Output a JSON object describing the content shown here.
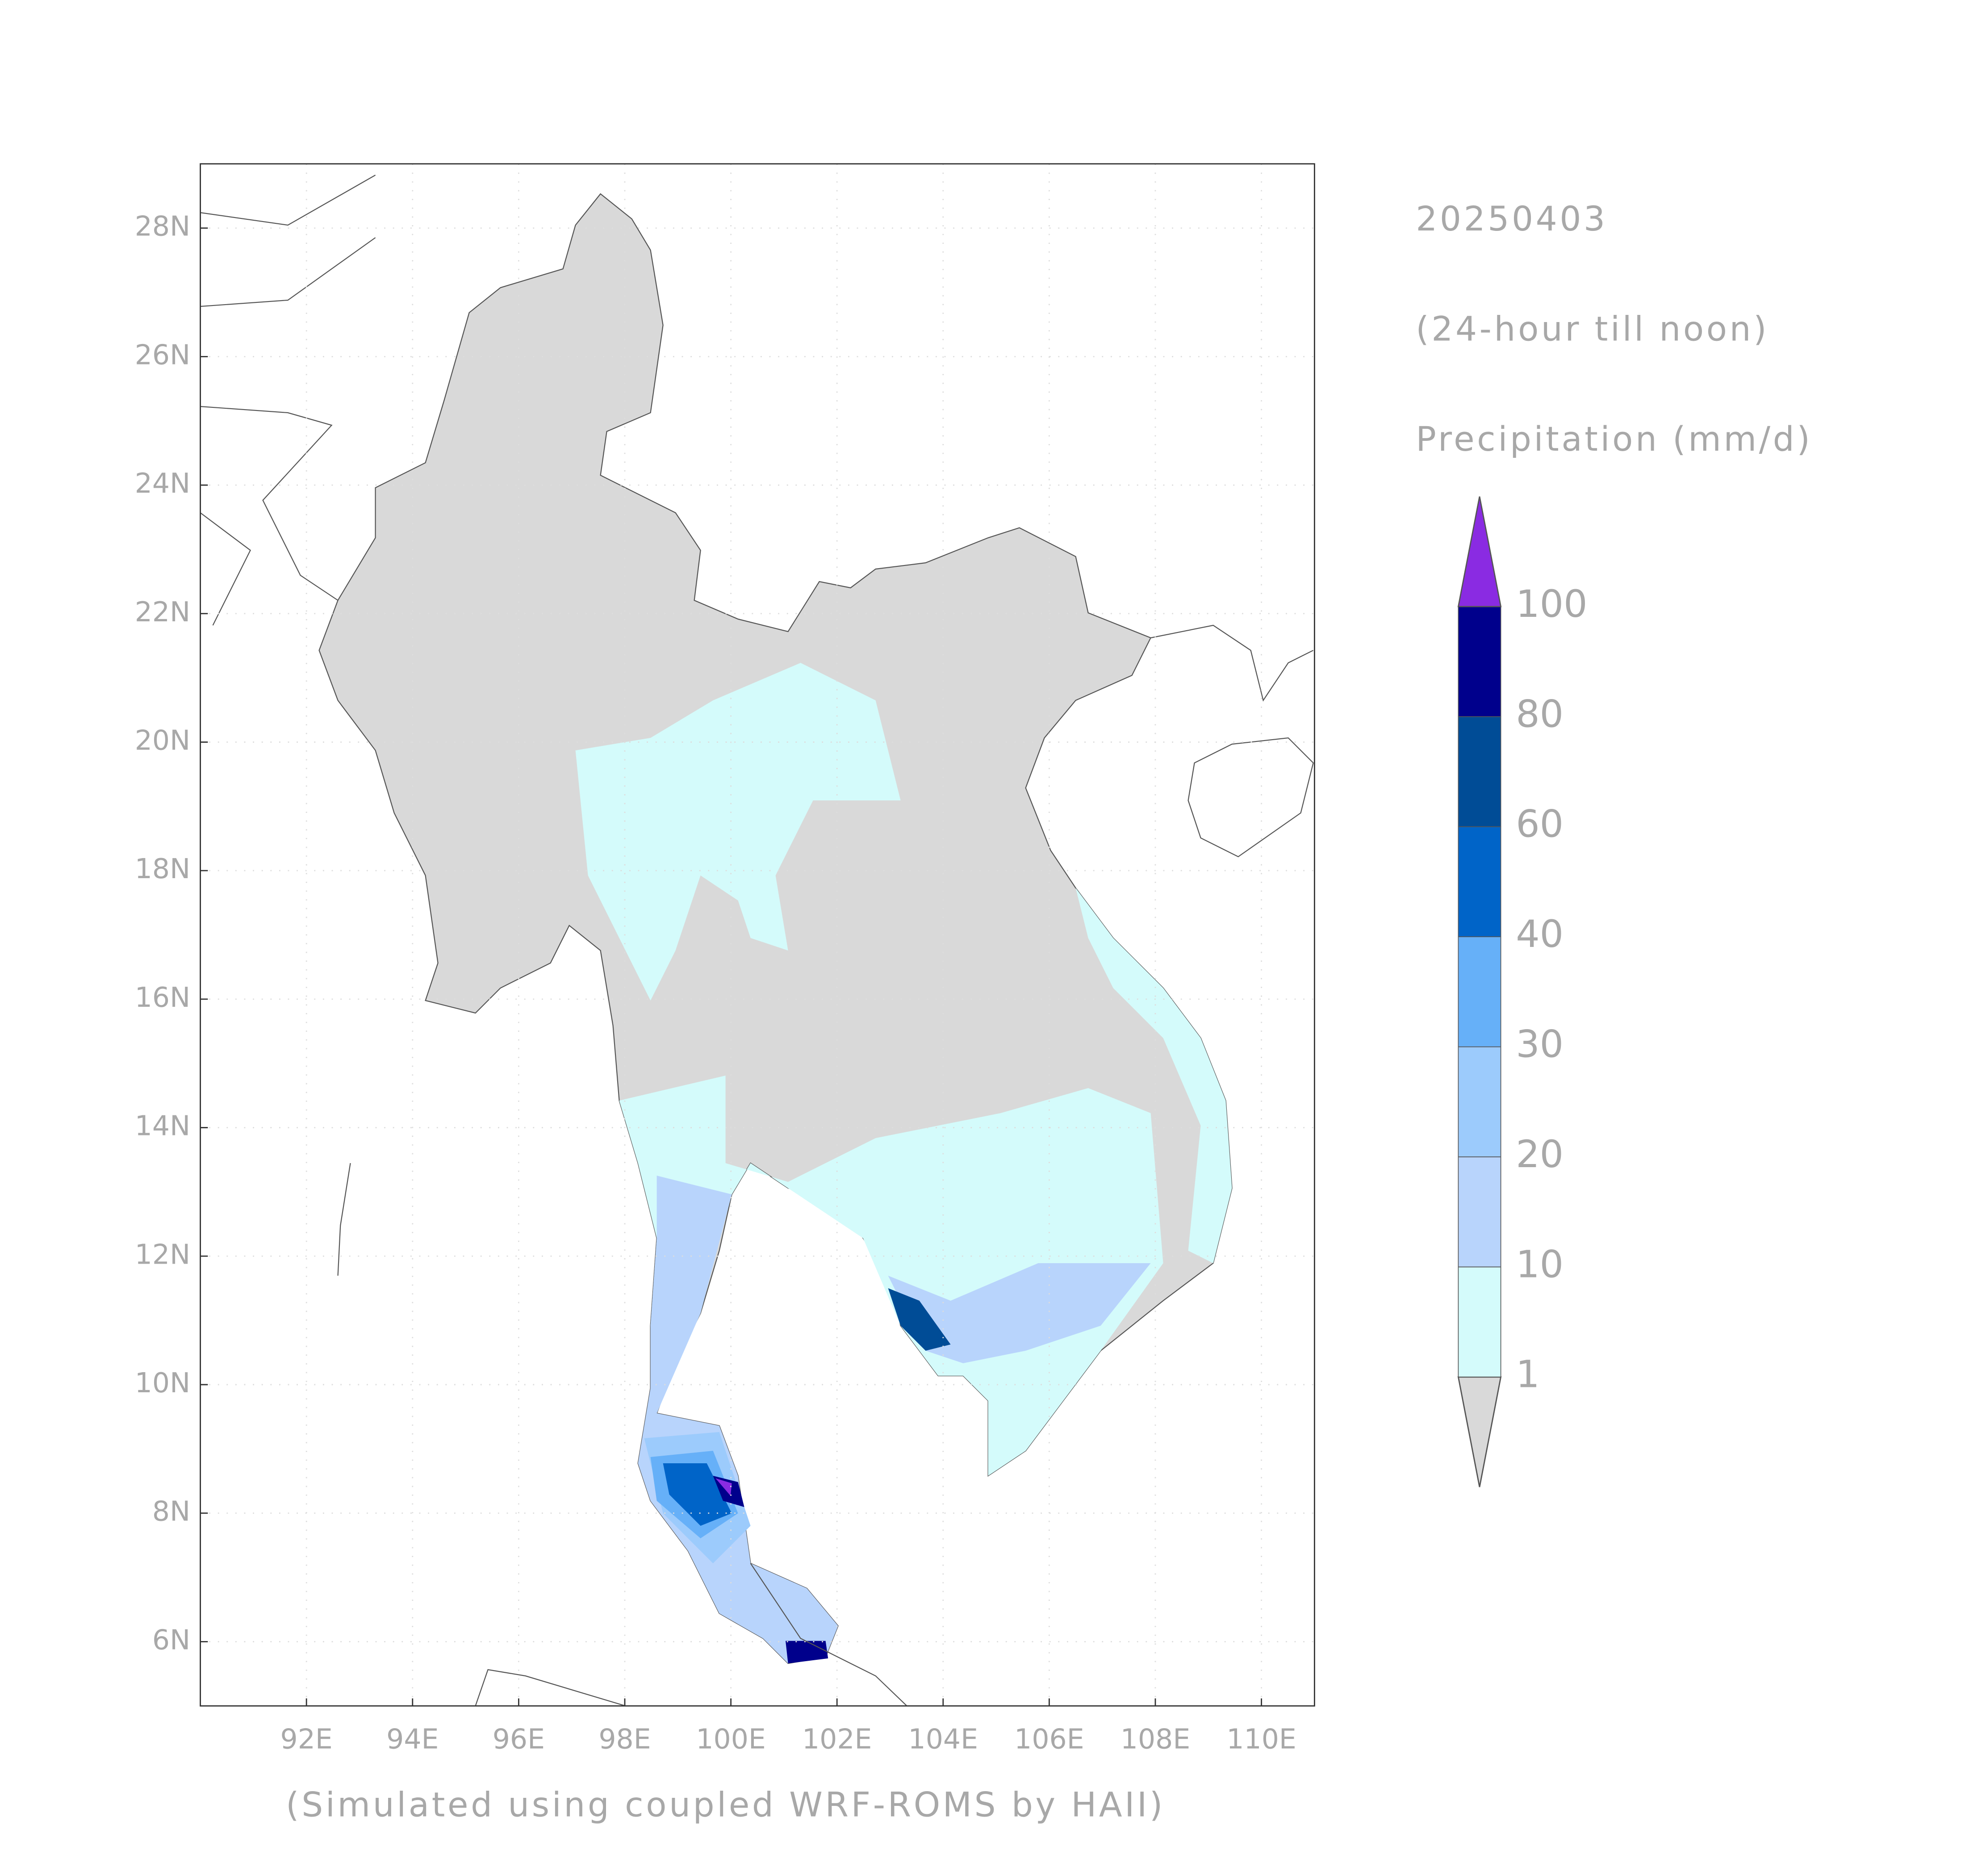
{
  "map": {
    "date": "20250403",
    "period": "(24-hour till noon)",
    "variable": "Precipitation (mm/d)",
    "footer": "(Simulated using coupled WRF-ROMS by HAII)",
    "xlim": [
      90,
      111
    ],
    "ylim": [
      5,
      29
    ],
    "xticks": [
      {
        "value": 92,
        "label": "92E"
      },
      {
        "value": 94,
        "label": "94E"
      },
      {
        "value": 96,
        "label": "96E"
      },
      {
        "value": 98,
        "label": "98E"
      },
      {
        "value": 100,
        "label": "100E"
      },
      {
        "value": 102,
        "label": "102E"
      },
      {
        "value": 104,
        "label": "104E"
      },
      {
        "value": 106,
        "label": "106E"
      },
      {
        "value": 108,
        "label": "108E"
      },
      {
        "value": 110,
        "label": "110E"
      }
    ],
    "yticks": [
      {
        "value": 6,
        "label": "6N"
      },
      {
        "value": 8,
        "label": "8N"
      },
      {
        "value": 10,
        "label": "10N"
      },
      {
        "value": 12,
        "label": "12N"
      },
      {
        "value": 14,
        "label": "14N"
      },
      {
        "value": 16,
        "label": "16N"
      },
      {
        "value": 18,
        "label": "18N"
      },
      {
        "value": 20,
        "label": "20N"
      },
      {
        "value": 22,
        "label": "22N"
      },
      {
        "value": 24,
        "label": "24N"
      },
      {
        "value": 26,
        "label": "26N"
      },
      {
        "value": 28,
        "label": "28N"
      }
    ],
    "grid": true,
    "colorbar": {
      "levels": [
        1,
        10,
        20,
        30,
        40,
        60,
        80,
        100
      ],
      "colors": [
        "#d9d9d9",
        "#d4fbfb",
        "#b8d4fc",
        "#9ccbfc",
        "#66b0f8",
        "#0064c8",
        "#004c96",
        "#00008c",
        "#8a2be2"
      ]
    }
  }
}
